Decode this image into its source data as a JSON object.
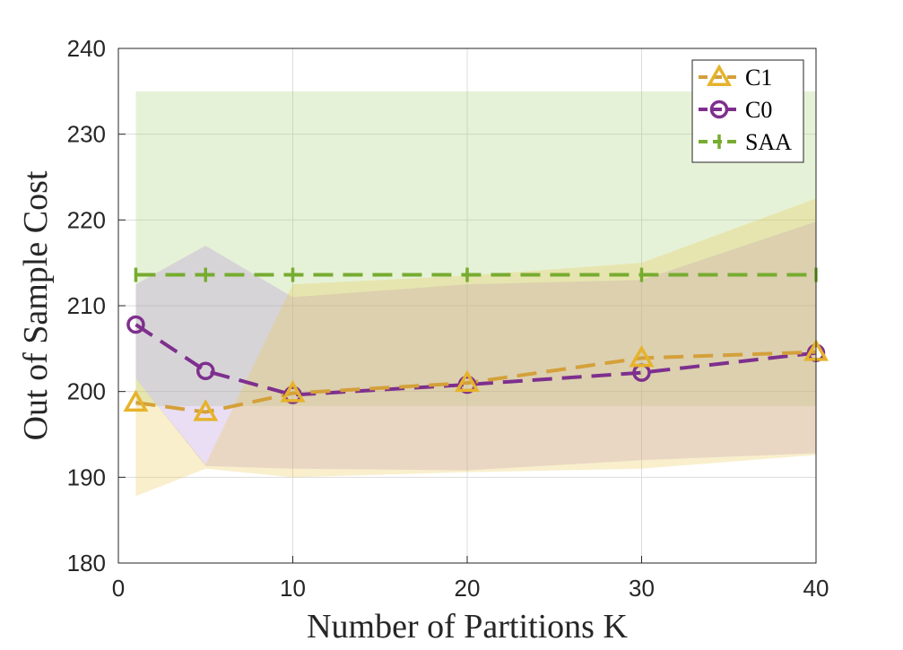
{
  "chart_data": {
    "type": "line",
    "title": "",
    "xlabel": "Number of Partitions K",
    "ylabel": "Out of Sample Cost",
    "xlim": [
      0,
      40
    ],
    "ylim": [
      180,
      240
    ],
    "xticks": [
      "0",
      "10",
      "20",
      "30",
      "40"
    ],
    "yticks": [
      "180",
      "190",
      "200",
      "210",
      "220",
      "230",
      "240"
    ],
    "grid": true,
    "legend_position": "top-right",
    "x": [
      1,
      5,
      10,
      20,
      30,
      40
    ],
    "series": [
      {
        "name": "C1",
        "color": "#e6b32b",
        "line_color": "#d4a03a",
        "marker": "triangle",
        "line_style": "dashed",
        "values": [
          198.7,
          197.6,
          199.8,
          201.0,
          203.9,
          204.6
        ],
        "band_upper": [
          201.5,
          191.5,
          212.5,
          213.5,
          215.0,
          222.5
        ],
        "band_lower": [
          187.8,
          191.0,
          190.0,
          190.6,
          191.0,
          192.6
        ],
        "band_color": "#e8c547"
      },
      {
        "name": "C0",
        "color": "#7e2f8e",
        "line_color": "#7e2f8e",
        "marker": "circle",
        "line_style": "dashed",
        "values": [
          207.8,
          202.4,
          199.6,
          200.8,
          202.2,
          204.5
        ],
        "band_upper": [
          212.5,
          217.0,
          211.0,
          212.5,
          213.0,
          219.8
        ],
        "band_lower": [
          201.5,
          191.3,
          191.0,
          190.8,
          192.0,
          192.8
        ],
        "band_color": "#b089d9"
      },
      {
        "name": "SAA",
        "color": "#77ac30",
        "line_color": "#77ac30",
        "marker": "vline",
        "line_style": "dashed",
        "values": [
          213.6,
          213.6,
          213.6,
          213.6,
          213.6,
          213.6
        ],
        "band_upper": [
          235.0,
          235.0,
          235.0,
          235.0,
          235.0,
          235.0
        ],
        "band_lower": [
          198.3,
          198.3,
          198.3,
          198.3,
          198.3,
          198.3
        ],
        "band_color": "#a7cf6f"
      }
    ]
  }
}
